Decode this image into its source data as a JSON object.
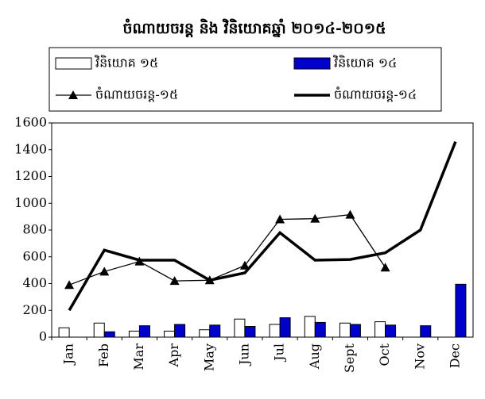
{
  "chart_data": {
    "type": "bar",
    "title": "ចំណាយចរន្ត និង វិនិយោគឆ្នាំ ២០១៤-២០១៥",
    "categories": [
      "Jan",
      "Feb",
      "Mar",
      "Apr",
      "May",
      "Jun",
      "Jul",
      "Aug",
      "Sept",
      "Oct",
      "Nov",
      "Dec"
    ],
    "series": [
      {
        "name": "វិនិយោគ ១៥",
        "type": "bar",
        "color": "#ffffff",
        "values": [
          70,
          105,
          45,
          45,
          55,
          135,
          95,
          155,
          105,
          115,
          null,
          null
        ]
      },
      {
        "name": "វិនិយោគ ១៤",
        "type": "bar",
        "color": "#0000cc",
        "values": [
          null,
          40,
          85,
          95,
          90,
          80,
          145,
          110,
          95,
          90,
          85,
          395
        ]
      },
      {
        "name": "ចំណាយចរន្ត-១៥",
        "type": "line",
        "marker": "triangle",
        "color": "#000000",
        "values": [
          390,
          490,
          565,
          420,
          425,
          535,
          880,
          885,
          915,
          520,
          null,
          null
        ]
      },
      {
        "name": "ចំណាយចរន្ត-១៤",
        "type": "line",
        "color": "#000000",
        "values": [
          200,
          650,
          575,
          575,
          425,
          480,
          780,
          575,
          580,
          630,
          800,
          1460
        ]
      }
    ],
    "ylim": [
      0,
      1600
    ],
    "yticks": [
      0,
      200,
      400,
      600,
      800,
      1000,
      1200,
      1400,
      1600
    ],
    "grid": false
  }
}
